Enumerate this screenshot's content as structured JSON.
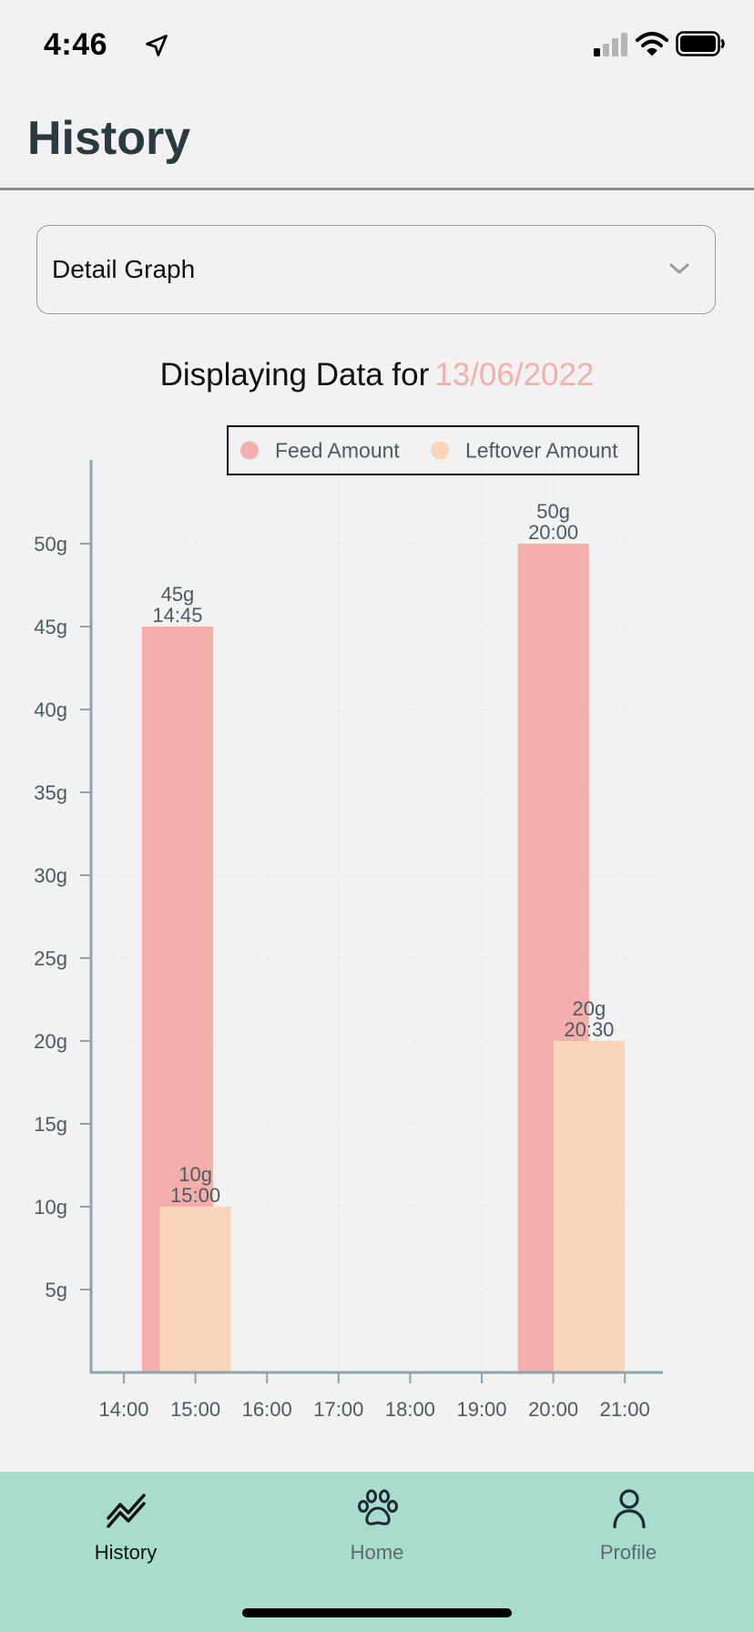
{
  "status_bar": {
    "time": "4:46"
  },
  "header": {
    "title": "History"
  },
  "dropdown": {
    "selected": "Detail Graph"
  },
  "date_banner": {
    "prefix": "Displaying Data for",
    "date": "13/06/2022"
  },
  "colors": {
    "feed": "#f4aeab",
    "leftover": "#f9d5b9",
    "tab_bar": "#a8dccc",
    "axis": "#8fa3ab"
  },
  "chart_data": {
    "type": "bar",
    "x_ticks": [
      "14:00",
      "15:00",
      "16:00",
      "17:00",
      "18:00",
      "19:00",
      "20:00",
      "21:00"
    ],
    "y_ticks": [
      "5g",
      "10g",
      "15g",
      "20g",
      "25g",
      "30g",
      "35g",
      "40g",
      "45g",
      "50g"
    ],
    "xlim": [
      "13:45",
      "21:30"
    ],
    "ylim": [
      0,
      55
    ],
    "grid": true,
    "legend_position": "top",
    "series": [
      {
        "name": "Feed Amount",
        "color": "#f4aeab",
        "points": [
          {
            "x": "14:45",
            "y": 45,
            "label": "45g",
            "time_label": "14:45"
          },
          {
            "x": "20:00",
            "y": 50,
            "label": "50g",
            "time_label": "20:00"
          }
        ]
      },
      {
        "name": "Leftover Amount",
        "color": "#f9d5b9",
        "points": [
          {
            "x": "15:00",
            "y": 10,
            "label": "10g",
            "time_label": "15:00"
          },
          {
            "x": "20:30",
            "y": 20,
            "label": "20g",
            "time_label": "20:30"
          }
        ]
      }
    ]
  },
  "tabs": [
    {
      "label": "History",
      "icon": "chart-line-icon",
      "active": true
    },
    {
      "label": "Home",
      "icon": "paw-icon",
      "active": false
    },
    {
      "label": "Profile",
      "icon": "user-icon",
      "active": false
    }
  ]
}
